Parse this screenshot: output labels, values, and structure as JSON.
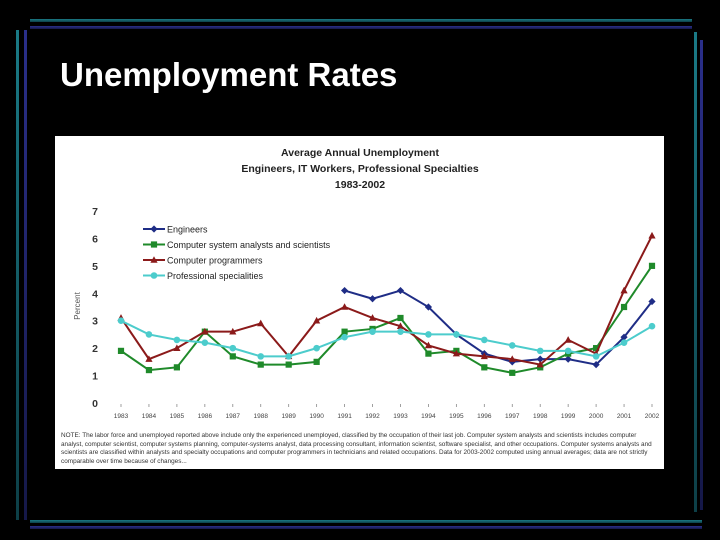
{
  "slide": {
    "title": "Unemployment Rates"
  },
  "chart_data": {
    "type": "line",
    "title": "Average Annual Unemployment",
    "subtitle": "Engineers, IT Workers, Professional Specialties",
    "subtitle2": "1983-2002",
    "ylabel": "Percent",
    "xlabel": "",
    "ylim": [
      0,
      7
    ],
    "yticks": [
      "0",
      "1",
      "2",
      "3",
      "4",
      "5",
      "6",
      "7"
    ],
    "x": [
      "1983",
      "1984",
      "1985",
      "1986",
      "1987",
      "1988",
      "1989",
      "1990",
      "1991",
      "1992",
      "1993",
      "1994",
      "1995",
      "1996",
      "1997",
      "1998",
      "1999",
      "2000",
      "2001",
      "2002"
    ],
    "grid": false,
    "legend": "top-left",
    "series": [
      {
        "name": "Engineers",
        "color": "#1f2d86",
        "marker": "diamond",
        "values": [
          null,
          null,
          null,
          null,
          null,
          null,
          null,
          null,
          4.1,
          3.8,
          4.1,
          3.5,
          2.5,
          1.8,
          1.5,
          1.6,
          1.6,
          1.4,
          2.4,
          3.7
        ]
      },
      {
        "name": "Computer system analysts and scientists",
        "color": "#1f8a2a",
        "marker": "square",
        "values": [
          1.9,
          1.2,
          1.3,
          2.6,
          1.7,
          1.4,
          1.4,
          1.5,
          2.6,
          2.7,
          3.1,
          1.8,
          1.9,
          1.3,
          1.1,
          1.3,
          1.8,
          2.0,
          3.5,
          5.0
        ]
      },
      {
        "name": "Computer programmers",
        "color": "#8b1a1a",
        "marker": "triangle",
        "values": [
          3.1,
          1.6,
          2.0,
          2.6,
          2.6,
          2.9,
          1.7,
          3.0,
          3.5,
          3.1,
          2.8,
          2.1,
          1.8,
          1.7,
          1.6,
          1.4,
          2.3,
          1.8,
          4.1,
          6.1
        ]
      },
      {
        "name": "Professional specialities",
        "color": "#4ccccc",
        "marker": "circle",
        "values": [
          3.0,
          2.5,
          2.3,
          2.2,
          2.0,
          1.7,
          1.7,
          2.0,
          2.4,
          2.6,
          2.6,
          2.5,
          2.5,
          2.3,
          2.1,
          1.9,
          1.9,
          1.7,
          2.2,
          2.8
        ]
      }
    ],
    "note": "NOTE: The labor force and unemployed reported above include only the experienced unemployed, classified by the occupation of their last job. Computer system analysts and scientists includes computer analyst, computer scientist, computer systems planning, computer-systems analyst, data processing consultant, information scientist, software specialist, and other occupations. Computer systems analysts and scientists are classified within analysts and specialty occupations and computer programmers in technicians and related occupations. Data for 2003-2002 computed using annual averages; data are not strictly comparable over time because of changes..."
  }
}
